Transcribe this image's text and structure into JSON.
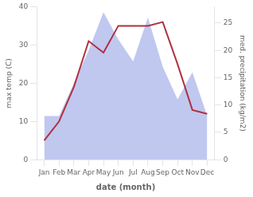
{
  "chart_data": {
    "type": "line",
    "categories": [
      "Jan",
      "Feb",
      "Mar",
      "Apr",
      "May",
      "Jun",
      "Jul",
      "Aug",
      "Sep",
      "Oct",
      "Nov",
      "Dec"
    ],
    "xlabel": "date (month)",
    "ylabel": "max temp (C)",
    "y2label": "med. precipitation (kg/m2)",
    "series": [
      {
        "type": "area",
        "axis": "y2",
        "color": "#c0c8f0",
        "values": [
          8,
          8,
          14,
          20,
          27,
          22,
          18,
          26,
          17,
          11,
          16,
          8
        ]
      },
      {
        "type": "line",
        "color": "#b03040",
        "values": [
          5,
          10,
          19,
          31,
          28,
          35,
          35,
          35,
          36,
          25,
          13,
          12
        ]
      }
    ],
    "ylim": [
      0,
      40
    ],
    "yticks": [
      0,
      10,
      20,
      30,
      40
    ],
    "y2lim": [
      0,
      28
    ],
    "y2ticks": [
      0,
      5,
      10,
      15,
      20,
      25
    ],
    "grid": false
  }
}
